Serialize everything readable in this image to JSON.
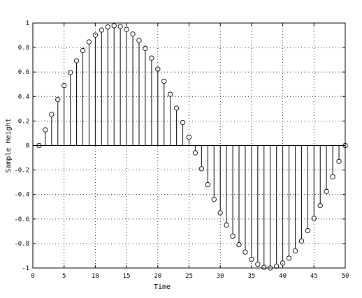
{
  "chart_data": {
    "type": "stem",
    "xlabel": "Time",
    "ylabel": "Sample Height",
    "xlim": [
      0,
      50
    ],
    "ylim": [
      -1,
      1
    ],
    "grid": true,
    "xticks": [
      0,
      5,
      10,
      15,
      20,
      25,
      30,
      35,
      40,
      45,
      50
    ],
    "xtick_labels": [
      "0",
      "5",
      "10",
      "15",
      "20",
      "25",
      "30",
      "35",
      "40",
      "45",
      "50"
    ],
    "yticks": [
      1,
      0.8,
      0.6,
      0.4,
      0.2,
      0,
      -0.2,
      -0.4,
      -0.6,
      -0.8,
      -1
    ],
    "ytick_labels": [
      "1",
      "0.8",
      "0.6",
      "0.4",
      "0.2",
      "0",
      "-0.2",
      "-0.4",
      "-0.6",
      "-0.8",
      "-1"
    ],
    "marker": "circle",
    "x": [
      1,
      2,
      3,
      4,
      5,
      6,
      7,
      8,
      9,
      10,
      11,
      12,
      13,
      14,
      15,
      16,
      17,
      18,
      19,
      20,
      21,
      22,
      23,
      24,
      25,
      26,
      27,
      28,
      29,
      30,
      31,
      32,
      33,
      34,
      35,
      36,
      37,
      38,
      39,
      40,
      41,
      42,
      43,
      44,
      45,
      46,
      47,
      48,
      49,
      50
    ],
    "values": [
      0,
      0.128,
      0.254,
      0.375,
      0.49,
      0.596,
      0.692,
      0.775,
      0.846,
      0.902,
      0.943,
      0.968,
      0.978,
      0.971,
      0.948,
      0.91,
      0.858,
      0.793,
      0.714,
      0.624,
      0.525,
      0.418,
      0.305,
      0.188,
      0.068,
      -0.06,
      -0.19,
      -0.32,
      -0.44,
      -0.55,
      -0.65,
      -0.74,
      -0.81,
      -0.87,
      -0.93,
      -0.97,
      -0.995,
      -1.0,
      -0.985,
      -0.96,
      -0.92,
      -0.86,
      -0.78,
      -0.695,
      -0.595,
      -0.49,
      -0.375,
      -0.255,
      -0.13,
      0
    ]
  }
}
